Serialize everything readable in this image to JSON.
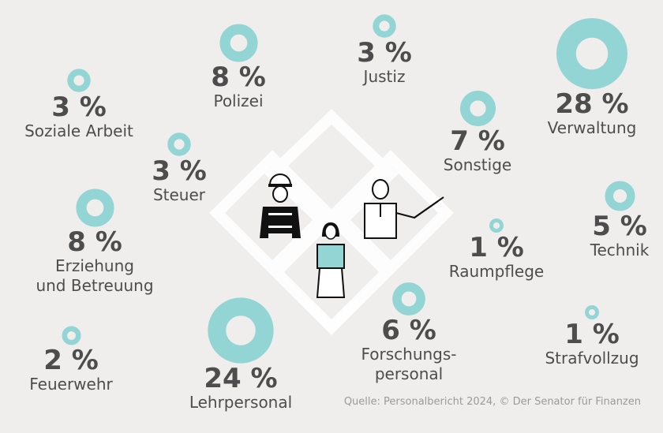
{
  "colors": {
    "ring": "#93d5d4",
    "background": "#f0eeed",
    "text": "#4d4d4d",
    "source": "#9a9a9a"
  },
  "source": "Quelle: Personalbericht 2024, © Der Senator für Finanzen",
  "chart_data": {
    "type": "bubble",
    "title": "",
    "unit": "%",
    "categories": [
      "Polizei",
      "Justiz",
      "Verwaltung",
      "Soziale Arbeit",
      "Steuer",
      "Sonstige",
      "Technik",
      "Erziehung und Betreuung",
      "Raumpflege",
      "Forschungspersonal",
      "Strafvollzug",
      "Feuerwehr",
      "Lehrpersonal"
    ],
    "items": [
      {
        "key": "polizei",
        "value": 8,
        "pct": "8 %",
        "label": [
          "Polizei"
        ]
      },
      {
        "key": "justiz",
        "value": 3,
        "pct": "3 %",
        "label": [
          "Justiz"
        ]
      },
      {
        "key": "verwaltung",
        "value": 28,
        "pct": "28 %",
        "label": [
          "Verwaltung"
        ]
      },
      {
        "key": "soziale",
        "value": 3,
        "pct": "3 %",
        "label": [
          "Soziale Arbeit"
        ]
      },
      {
        "key": "steuer",
        "value": 3,
        "pct": "3 %",
        "label": [
          "Steuer"
        ]
      },
      {
        "key": "sonstige",
        "value": 7,
        "pct": "7 %",
        "label": [
          "Sonstige"
        ]
      },
      {
        "key": "technik",
        "value": 5,
        "pct": "5 %",
        "label": [
          "Technik"
        ]
      },
      {
        "key": "erziehung",
        "value": 8,
        "pct": "8 %",
        "label": [
          "Erziehung",
          "und Betreuung"
        ]
      },
      {
        "key": "raumpflege",
        "value": 1,
        "pct": "1 %",
        "label": [
          "Raumpflege"
        ]
      },
      {
        "key": "forschung",
        "value": 6,
        "pct": "6 %",
        "label": [
          "Forschungs-",
          "personal"
        ]
      },
      {
        "key": "strafvollzug",
        "value": 1,
        "pct": "1 %",
        "label": [
          "Strafvollzug"
        ]
      },
      {
        "key": "feuerwehr",
        "value": 2,
        "pct": "2 %",
        "label": [
          "Feuerwehr"
        ]
      },
      {
        "key": "lehr",
        "value": 24,
        "pct": "24 %",
        "label": [
          "Lehrpersonal"
        ]
      }
    ]
  }
}
